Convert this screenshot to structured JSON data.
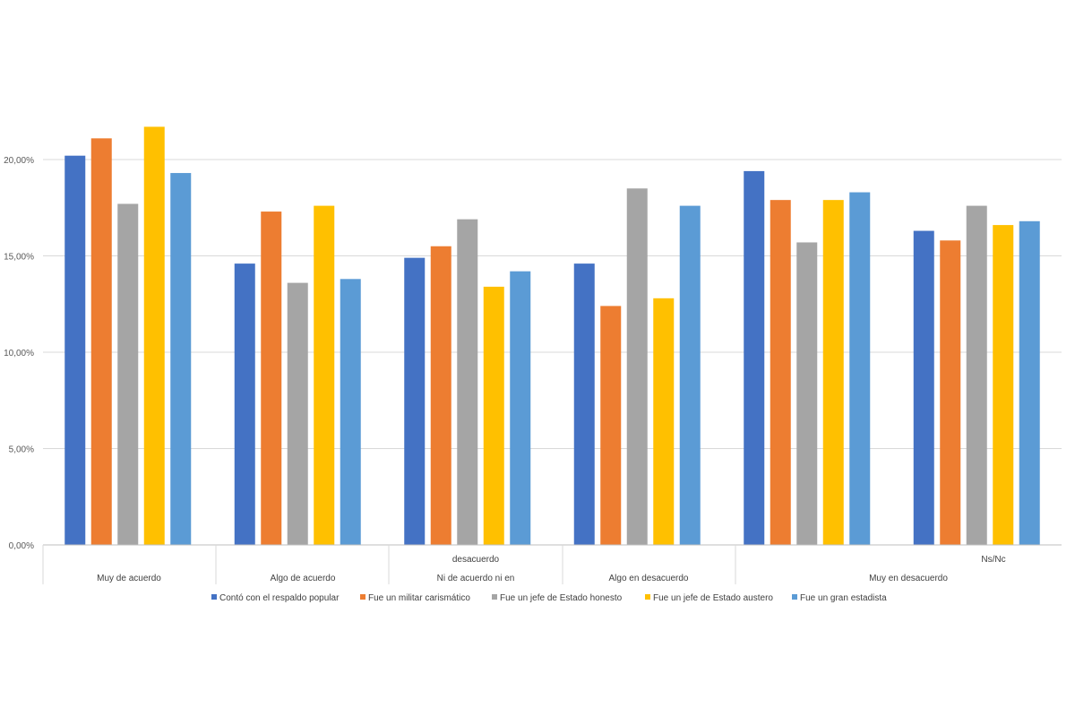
{
  "chart_data": {
    "type": "bar",
    "title": "",
    "xlabel": "",
    "ylabel": "",
    "ylim": [
      0,
      0.24
    ],
    "yticks": [
      0,
      0.05,
      0.1,
      0.15,
      0.2
    ],
    "ytick_labels": [
      "0,00%",
      "5,00%",
      "10,00%",
      "15,00%",
      "20,00%"
    ],
    "grid": true,
    "legend_position": "bottom",
    "categories": [
      "Muy de acuerdo",
      "Algo de acuerdo",
      "Ni de acuerdo ni en desacuerdo",
      "Algo en desacuerdo",
      "Muy en desacuerdo",
      "Ns/Nc"
    ],
    "category_labels": [
      {
        "line1": "",
        "line2": "Muy de acuerdo"
      },
      {
        "line1": "",
        "line2": "Algo de acuerdo"
      },
      {
        "line1": "desacuerdo",
        "line2": "Ni de acuerdo ni en"
      },
      {
        "line1": "",
        "line2": "Algo en desacuerdo"
      },
      {
        "line1": "",
        "line2": "Muy en desacuerdo"
      },
      {
        "line1": "Ns/Nc",
        "line2": ""
      }
    ],
    "series": [
      {
        "name": "Contó con el respaldo popular",
        "color": "#4472C4",
        "values": [
          0.202,
          0.146,
          0.149,
          0.146,
          0.194,
          0.163
        ]
      },
      {
        "name": "Fue un militar carismático",
        "color": "#ED7D31",
        "values": [
          0.211,
          0.173,
          0.155,
          0.124,
          0.179,
          0.158
        ]
      },
      {
        "name": "Fue un jefe de Estado honesto",
        "color": "#A5A5A5",
        "values": [
          0.177,
          0.136,
          0.169,
          0.185,
          0.157,
          0.176
        ]
      },
      {
        "name": "Fue un jefe de Estado austero",
        "color": "#FFC000",
        "values": [
          0.217,
          0.176,
          0.134,
          0.128,
          0.179,
          0.166
        ]
      },
      {
        "name": "Fue un gran estadista",
        "color": "#5B9BD5",
        "values": [
          0.193,
          0.138,
          0.142,
          0.176,
          0.183,
          0.168
        ]
      }
    ]
  }
}
